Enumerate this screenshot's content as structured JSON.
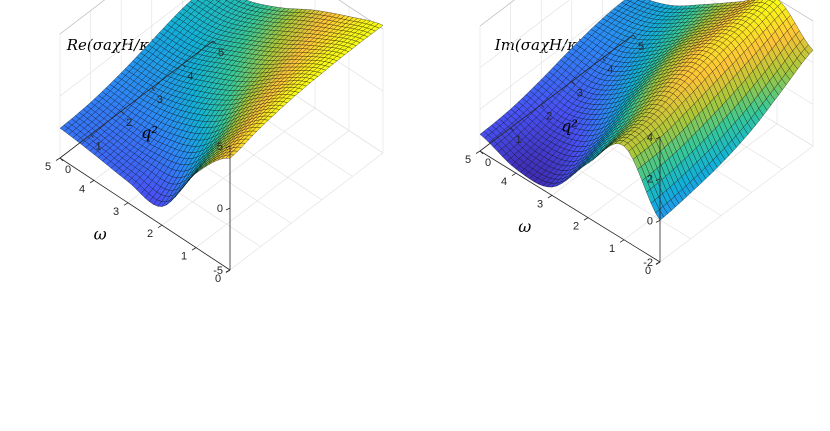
{
  "chart_data": [
    {
      "type": "surface",
      "title": "Re(σ_{aχH}/κ),  κμ̄₅ = 0.125,  κμ̄ = 0.125",
      "title_display": "Re(σaχH/κ),  κμ̄₅ = 0.125,  κμ̄ = 0.125",
      "xlabel": "ω",
      "ylabel": "q²",
      "zlabel": "",
      "xlim": [
        0,
        5
      ],
      "ylim": [
        0,
        5
      ],
      "zlim": [
        -5,
        5
      ],
      "x_ticks": [
        "0",
        "1",
        "2",
        "3",
        "4",
        "5"
      ],
      "y_ticks": [
        "0",
        "1",
        "2",
        "3",
        "4",
        "5"
      ],
      "z_ticks": [
        "-5",
        "0",
        "5"
      ],
      "colormap": "parula",
      "grid": true,
      "surface_samples": {
        "omega": [
          0,
          1,
          2,
          3,
          4,
          5
        ],
        "q2": [
          0,
          1,
          2,
          3,
          4,
          5
        ],
        "z_rows_by_omega": [
          [
            4.0,
            4.6,
            5.0,
            5.2,
            5.3,
            5.3
          ],
          [
            1.0,
            2.0,
            3.0,
            3.6,
            4.0,
            4.2
          ],
          [
            -3.5,
            -1.5,
            0.5,
            1.6,
            2.4,
            2.9
          ],
          [
            -3.3,
            -2.5,
            -1.0,
            0.2,
            0.9,
            1.3
          ],
          [
            -2.9,
            -2.6,
            -1.8,
            -1.0,
            -0.3,
            0.1
          ],
          [
            -2.6,
            -2.4,
            -1.9,
            -1.2,
            -0.5,
            -0.2
          ]
        ]
      }
    },
    {
      "type": "surface",
      "title": "Im(σ_{aχH}/κ),  κμ̄₅ = 0.125,  κμ̄ = 0.125",
      "title_display": "Im(σaχH/κ),  κμ̄₅ = 0.125,  κμ̄ = 0.125",
      "xlabel": "ω",
      "ylabel": "q²",
      "zlabel": "",
      "xlim": [
        0,
        5
      ],
      "ylim": [
        0,
        5
      ],
      "zlim": [
        -2,
        4
      ],
      "x_ticks": [
        "0",
        "1",
        "2",
        "3",
        "4",
        "5"
      ],
      "y_ticks": [
        "0",
        "1",
        "2",
        "3",
        "4",
        "5"
      ],
      "z_ticks": [
        "-2",
        "0",
        "2",
        "4"
      ],
      "colormap": "parula",
      "grid": true,
      "surface_samples": {
        "omega": [
          0,
          1,
          2,
          3,
          4,
          5
        ],
        "q2": [
          0,
          1,
          2,
          3,
          4,
          5
        ],
        "z_rows_by_omega": [
          [
            0.0,
            0.2,
            0.5,
            1.0,
            1.8,
            2.6
          ],
          [
            2.5,
            2.6,
            3.0,
            3.4,
            3.7,
            4.0
          ],
          [
            0.6,
            1.2,
            2.0,
            2.5,
            2.7,
            2.8
          ],
          [
            -1.6,
            -1.0,
            0.0,
            0.8,
            1.3,
            1.6
          ],
          [
            -1.8,
            -1.5,
            -1.0,
            -0.4,
            0.2,
            0.5
          ],
          [
            -1.2,
            -1.1,
            -0.8,
            -0.4,
            -0.1,
            0.0
          ]
        ]
      }
    }
  ]
}
